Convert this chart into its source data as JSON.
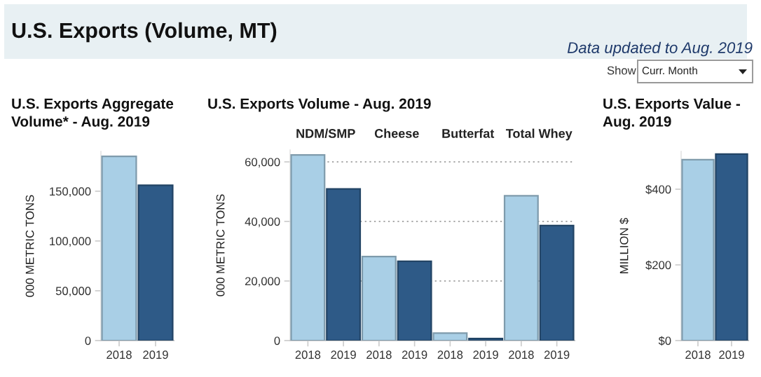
{
  "chart_data": [
    {
      "type": "other",
      "title": "U.S. Exports (Volume, MT)",
      "annotations": [
        "Data updated to Aug. 2019",
        "Show",
        "Curr. Month"
      ]
    },
    {
      "type": "bar",
      "title": "U.S. Exports Aggregate\nVolume* - Aug. 2019",
      "ylabel": "000 METRIC TONS",
      "categories": [
        "2018",
        "2019"
      ],
      "values": [
        185000,
        156000
      ],
      "colors": [
        "#a9cfe6",
        "#2e5a87"
      ],
      "ylim": [
        0,
        190000
      ],
      "yticks": [
        {
          "value": 0,
          "label": "0"
        },
        {
          "value": 50000,
          "label": "50,000"
        },
        {
          "value": 100000,
          "label": "100,000"
        },
        {
          "value": 150000,
          "label": "150,000"
        }
      ],
      "grid": false
    },
    {
      "type": "bar",
      "title": "U.S. Exports Volume - Aug. 2019",
      "ylabel": "000 METRIC TONS",
      "categories": [
        "2018",
        "2019",
        "2018",
        "2019",
        "2018",
        "2019",
        "2018",
        "2019"
      ],
      "values": [
        62300,
        50900,
        28200,
        26600,
        2500,
        700,
        48600,
        38600
      ],
      "colors": [
        "#a9cfe6",
        "#2e5a87",
        "#a9cfe6",
        "#2e5a87",
        "#a9cfe6",
        "#2e5a87",
        "#a9cfe6",
        "#2e5a87"
      ],
      "annotations": [
        "NDM/SMP",
        "Cheese",
        "Butterfat",
        "Total Whey"
      ],
      "ylim": [
        0,
        64000
      ],
      "yticks": [
        {
          "value": 0,
          "label": "0"
        },
        {
          "value": 20000,
          "label": "20,000"
        },
        {
          "value": 40000,
          "label": "40,000"
        },
        {
          "value": 60000,
          "label": "60,000"
        }
      ],
      "grid": "y"
    },
    {
      "type": "bar",
      "title": "U.S. Exports Value -\nAug. 2019",
      "ylabel": "MILLION $",
      "categories": [
        "2018",
        "2019"
      ],
      "values": [
        478,
        493
      ],
      "colors": [
        "#a9cfe6",
        "#2e5a87"
      ],
      "ylim": [
        0,
        500
      ],
      "yticks": [
        {
          "value": 0,
          "label": "$0"
        },
        {
          "value": 200,
          "label": "$200"
        },
        {
          "value": 400,
          "label": "$400"
        }
      ],
      "grid": false
    }
  ]
}
